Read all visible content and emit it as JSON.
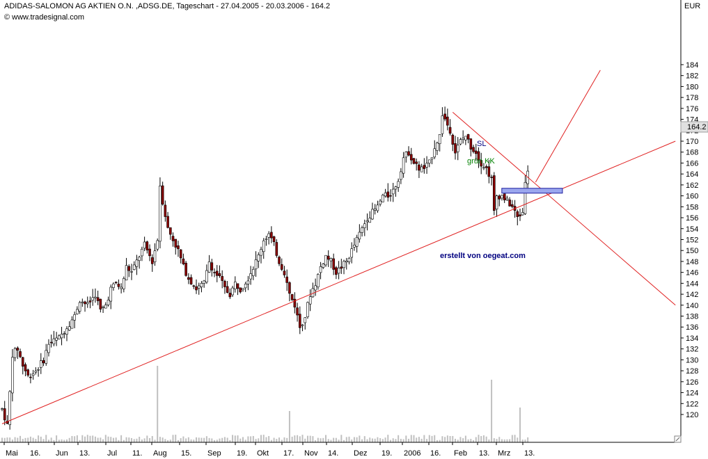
{
  "header": {
    "title": "ADIDAS-SALOMON AG AKTIEN O.N. ,ADSG.DE, Tageschart - 27.04.2005 - 20.03.2006 - 164.2",
    "source": "© www.tradesignal.com"
  },
  "colors": {
    "up_candle": "#ffffff",
    "down_candle": "#8b0000",
    "wick": "#000000",
    "trendline": "#e02020",
    "volume": "#c0c0c0",
    "zone_fill": "#9aa6ee",
    "zone_stroke": "#2020a0",
    "price_marker": "#e0e0e0",
    "watermark": "#000080",
    "label_green": "#008000",
    "label_blue": "#000080"
  },
  "chart_data": {
    "type": "candlestick",
    "title": "ADIDAS-SALOMON AG AKTIEN O.N. ,ADSG.DE, Tageschart - 27.04.2005 - 20.03.2006 - 164.2",
    "currency_label": "EUR",
    "last_price": "164.2",
    "ylim": [
      118,
      186
    ],
    "y_ticks": [
      120,
      122,
      124,
      126,
      128,
      130,
      132,
      134,
      136,
      138,
      140,
      142,
      144,
      146,
      148,
      150,
      152,
      154,
      156,
      158,
      160,
      162,
      164,
      166,
      168,
      170,
      172,
      174,
      176,
      178,
      180,
      182,
      184
    ],
    "x_ticks": [
      "Mai",
      "16.",
      "Jun",
      "13.",
      "Jul",
      "11.",
      "Aug",
      "15.",
      "Sep",
      "19.",
      "Okt",
      "17.",
      "Nov",
      "14.",
      "Dez",
      "19.",
      "2006",
      "16.",
      "Feb",
      "13.",
      "Mrz",
      "13."
    ],
    "price_path": [
      [
        0,
        121
      ],
      [
        2,
        118
      ],
      [
        3,
        124
      ],
      [
        4,
        131
      ],
      [
        6,
        132
      ],
      [
        8,
        129
      ],
      [
        10,
        127
      ],
      [
        13,
        128
      ],
      [
        16,
        130
      ],
      [
        18,
        133
      ],
      [
        22,
        134
      ],
      [
        25,
        136
      ],
      [
        28,
        138
      ],
      [
        30,
        141
      ],
      [
        33,
        140
      ],
      [
        36,
        142
      ],
      [
        38,
        139
      ],
      [
        40,
        140
      ],
      [
        42,
        143
      ],
      [
        44,
        144
      ],
      [
        46,
        143
      ],
      [
        48,
        147
      ],
      [
        50,
        146
      ],
      [
        52,
        148
      ],
      [
        55,
        151
      ],
      [
        58,
        148
      ],
      [
        60,
        152
      ],
      [
        61,
        162
      ],
      [
        62,
        159
      ],
      [
        64,
        154
      ],
      [
        66,
        152
      ],
      [
        68,
        150
      ],
      [
        70,
        147
      ],
      [
        72,
        145
      ],
      [
        75,
        143
      ],
      [
        78,
        144
      ],
      [
        80,
        148
      ],
      [
        82,
        146
      ],
      [
        84,
        145
      ],
      [
        86,
        143
      ],
      [
        88,
        142
      ],
      [
        90,
        144
      ],
      [
        92,
        143
      ],
      [
        95,
        145
      ],
      [
        97,
        147
      ],
      [
        99,
        149
      ],
      [
        101,
        152
      ],
      [
        103,
        153
      ],
      [
        105,
        151
      ],
      [
        107,
        148
      ],
      [
        109,
        146
      ],
      [
        111,
        142
      ],
      [
        113,
        140
      ],
      [
        115,
        136
      ],
      [
        117,
        138
      ],
      [
        119,
        142
      ],
      [
        121,
        144
      ],
      [
        123,
        147
      ],
      [
        125,
        149
      ],
      [
        127,
        148
      ],
      [
        129,
        146
      ],
      [
        131,
        147
      ],
      [
        133,
        148
      ],
      [
        135,
        150
      ],
      [
        137,
        152
      ],
      [
        139,
        154
      ],
      [
        141,
        156
      ],
      [
        143,
        157
      ],
      [
        145,
        158
      ],
      [
        147,
        160
      ],
      [
        149,
        160
      ],
      [
        151,
        161
      ],
      [
        153,
        163
      ],
      [
        155,
        167
      ],
      [
        157,
        168
      ],
      [
        159,
        166
      ],
      [
        161,
        165
      ],
      [
        163,
        165
      ],
      [
        165,
        166
      ],
      [
        167,
        169
      ],
      [
        169,
        171
      ],
      [
        170,
        175
      ],
      [
        171,
        174
      ],
      [
        173,
        172
      ],
      [
        175,
        168
      ],
      [
        177,
        170
      ],
      [
        179,
        171
      ],
      [
        181,
        169
      ],
      [
        183,
        168
      ],
      [
        185,
        166
      ],
      [
        187,
        165
      ],
      [
        189,
        163
      ],
      [
        190,
        157
      ],
      [
        191,
        160
      ],
      [
        193,
        160
      ],
      [
        195,
        159
      ],
      [
        197,
        158
      ],
      [
        199,
        156
      ],
      [
        201,
        157
      ],
      [
        202,
        163
      ],
      [
        203,
        164.2
      ]
    ],
    "volume_spikes": [
      [
        60,
        22
      ],
      [
        189,
        18
      ],
      [
        111,
        9
      ],
      [
        200,
        10
      ]
    ],
    "trendlines": [
      {
        "from": [
          0,
          118.3
        ],
        "to": [
          260,
          170
        ]
      },
      {
        "from": [
          174,
          175.3
        ],
        "to": [
          260,
          140
        ]
      },
      {
        "from": [
          206,
          162.5
        ],
        "to": [
          231,
          183
        ]
      }
    ],
    "zone": {
      "label": "SL",
      "y": 161,
      "x_from": 190,
      "x_to": 211
    },
    "annotations": [
      "SL",
      "grün KK",
      "erstellt von oegeat.com"
    ]
  }
}
